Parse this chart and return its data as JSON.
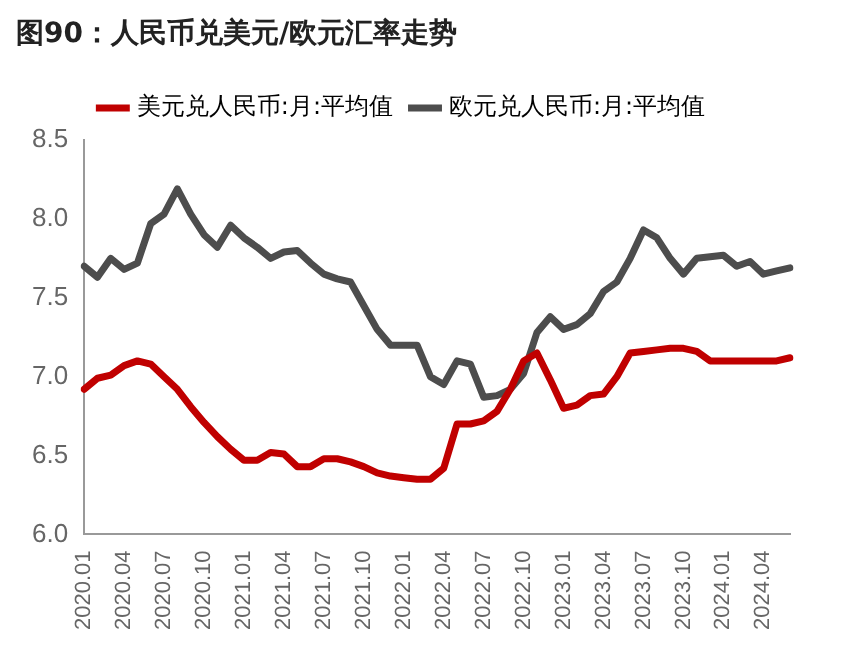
{
  "chart_data": {
    "type": "line",
    "title": "图90：人民币兑美元/欧元汇率走势",
    "categories": [
      "2020.01",
      null,
      null,
      "2020.04",
      null,
      null,
      "2020.07",
      null,
      null,
      "2020.10",
      null,
      null,
      "2021.01",
      null,
      null,
      "2021.04",
      null,
      null,
      "2021.07",
      null,
      null,
      "2021.10",
      null,
      null,
      "2022.01",
      null,
      null,
      "2022.04",
      null,
      null,
      "2022.07",
      null,
      null,
      "2022.10",
      null,
      null,
      "2023.01",
      null,
      null,
      "2023.04",
      null,
      null,
      "2023.07",
      null,
      null,
      "2023.10",
      null,
      null,
      "2024.01",
      null,
      null,
      "2024.04",
      null,
      null
    ],
    "series": [
      {
        "name": "美元兑人民币:月:平均值",
        "color": "#c00000",
        "values": [
          6.92,
          6.99,
          7.01,
          7.07,
          7.1,
          7.08,
          7.0,
          6.92,
          6.81,
          6.71,
          6.62,
          6.54,
          6.47,
          6.47,
          6.52,
          6.51,
          6.43,
          6.43,
          6.48,
          6.48,
          6.46,
          6.43,
          6.39,
          6.37,
          6.36,
          6.35,
          6.35,
          6.42,
          6.7,
          6.7,
          6.72,
          6.78,
          6.92,
          7.1,
          7.15,
          6.98,
          6.8,
          6.82,
          6.88,
          6.89,
          7.0,
          7.15,
          7.16,
          7.17,
          7.18,
          7.18,
          7.16,
          7.1,
          7.1,
          7.1,
          7.1,
          7.1,
          7.1,
          7.12
        ]
      },
      {
        "name": "欧元兑人民币:月:平均值",
        "color": "#4d4d4d",
        "values": [
          7.7,
          7.63,
          7.75,
          7.68,
          7.72,
          7.97,
          8.03,
          8.19,
          8.03,
          7.9,
          7.82,
          7.96,
          7.88,
          7.82,
          7.75,
          7.79,
          7.8,
          7.72,
          7.65,
          7.62,
          7.6,
          7.45,
          7.3,
          7.2,
          7.2,
          7.2,
          7.0,
          6.95,
          7.1,
          7.08,
          6.87,
          6.88,
          6.92,
          7.02,
          7.28,
          7.38,
          7.3,
          7.33,
          7.4,
          7.54,
          7.6,
          7.75,
          7.93,
          7.88,
          7.75,
          7.65,
          7.75,
          7.76,
          7.77,
          7.7,
          7.73,
          7.65,
          7.67,
          7.69
        ]
      }
    ],
    "ylim": [
      6.0,
      8.5
    ],
    "yticks": [
      {
        "value": 6,
        "label": "6.0"
      },
      {
        "value": 6.5,
        "label": "6.5"
      },
      {
        "value": 7,
        "label": "7.0"
      },
      {
        "value": 7.5,
        "label": "7.5"
      },
      {
        "value": 8,
        "label": "8.0"
      },
      {
        "value": 8.5,
        "label": "8.5"
      }
    ],
    "grid": false,
    "legend": "top",
    "marker": "none",
    "line_style": "solid"
  }
}
